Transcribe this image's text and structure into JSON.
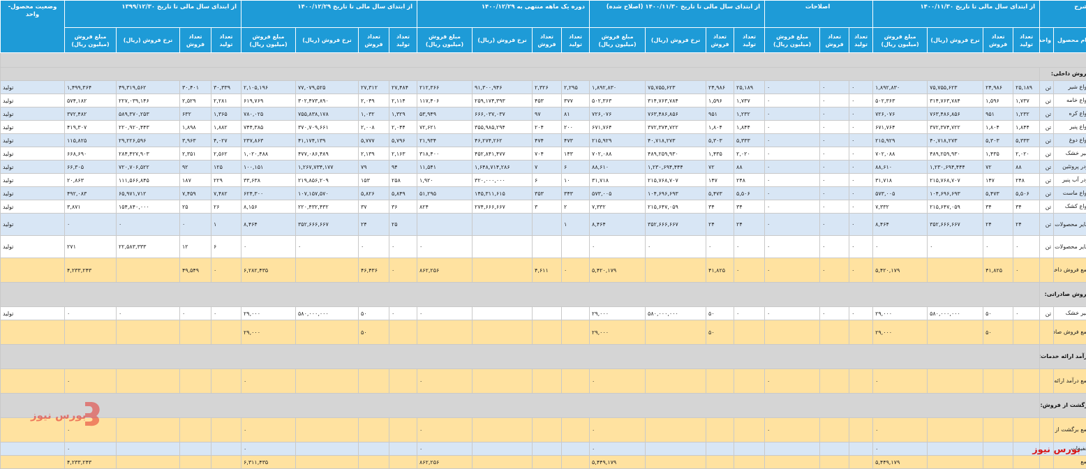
{
  "header": {
    "desc": "شرح",
    "product_name": "نام محصول",
    "unit": "واحد",
    "status": "وضعیت محصول-واحد",
    "groups": [
      "از ابتدای سال مالی تا تاریخ ۱۴۰۰/۱۱/۳۰",
      "اصلاحات",
      "از ابتدای سال مالی تا تاریخ ۱۴۰۰/۱۱/۳۰ (اصلاح شده)",
      "دوره یک ماهه منتهی به ۱۴۰۰/۱۲/۲۹",
      "از ابتدای سال مالی تا تاریخ ۱۴۰۰/۱۲/۲۹",
      "از ابتدای سال مالی تا تاریخ ۱۳۹۹/۱۲/۳۰"
    ],
    "sub4": [
      "تعداد تولید",
      "تعداد فروش",
      "نرخ فروش (ریال)",
      "مبلغ فروش (میلیون ریال)"
    ],
    "sub3": [
      "تعداد تولید",
      "تعداد فروش",
      "مبلغ فروش (میلیون ریال)"
    ]
  },
  "rows": [
    {
      "type": "blank"
    },
    {
      "type": "section",
      "name": "فروش داخلی:"
    },
    {
      "type": "data",
      "bg": "rb",
      "name": "انواع شیر",
      "unit": "تن",
      "status": "تولید",
      "values": [
        "۲۵,۱۸۹",
        "۲۴,۹۸۶",
        "۷۵,۷۵۵,۶۲۳",
        "۱,۸۹۲,۸۳۰",
        "۰",
        "۰",
        "۰",
        "۲۵,۱۸۹",
        "۲۴,۹۸۶",
        "۷۵,۷۵۵,۶۲۳",
        "۱,۸۹۲,۸۳۰",
        "۲,۲۹۵",
        "۲,۳۲۶",
        "۹۱,۳۰۰,۹۴۶",
        "۲۱۲,۳۶۶",
        "۲۷,۴۸۴",
        "۲۷,۳۱۲",
        "۷۷,۰۷۹,۵۲۵",
        "۲,۱۰۵,۱۹۶",
        "۳۰,۳۳۹",
        "۳۰,۴۰۱",
        "۴۹,۳۱۹,۵۶۲",
        "۱,۴۹۹,۳۶۴"
      ]
    },
    {
      "type": "data",
      "bg": "rw",
      "name": "انواع خامه",
      "unit": "تن",
      "status": "تولید",
      "values": [
        "۱,۷۳۷",
        "۱,۵۹۶",
        "۳۱۴,۷۶۳,۷۸۴",
        "۵۰۲,۳۶۳",
        "۰",
        "۰",
        "۰",
        "۱,۷۳۷",
        "۱,۵۹۶",
        "۳۱۴,۷۶۳,۷۸۴",
        "۵۰۲,۳۶۳",
        "۳۷۷",
        "۴۵۳",
        "۲۵۹,۱۷۴,۳۹۳",
        "۱۱۷,۴۰۶",
        "۲,۱۱۴",
        "۲,۰۴۹",
        "۳۰۲,۴۷۳,۸۹۰",
        "۶۱۹,۷۶۹",
        "۲,۲۸۱",
        "۲,۵۲۹",
        "۲۲۷,۰۳۹,۱۴۶",
        "۵۷۴,۱۸۲"
      ]
    },
    {
      "type": "data",
      "bg": "rb",
      "name": "انواع کره",
      "unit": "تن",
      "status": "تولید",
      "values": [
        "۱,۲۳۲",
        "۹۵۱",
        "۷۶۳,۴۸۶,۸۵۶",
        "۷۲۶,۰۷۶",
        "۰",
        "۰",
        "۰",
        "۱,۲۳۲",
        "۹۵۱",
        "۷۶۳,۴۸۶,۸۵۶",
        "۷۲۶,۰۷۶",
        "۸۱",
        "۹۷",
        "۶۶۶,۰۳۷,۰۳۷",
        "۵۳,۹۴۹",
        "۱,۳۲۹",
        "۱,۰۳۲",
        "۷۵۵,۸۳۸,۱۷۸",
        "۷۸۰,۰۲۵",
        "۱,۳۶۵",
        "۶۳۲",
        "۵۸۹,۳۷۰,۲۵۳",
        "۳۷۲,۴۸۲"
      ]
    },
    {
      "type": "data",
      "bg": "rw",
      "name": "انواع پنیر",
      "unit": "تن",
      "status": "تولید",
      "values": [
        "۱,۸۴۴",
        "۱,۸۰۴",
        "۳۷۲,۳۷۴,۷۲۲",
        "۶۷۱,۷۶۴",
        "۰",
        "۰",
        "۰",
        "۱,۸۴۴",
        "۱,۸۰۴",
        "۳۷۲,۳۷۴,۷۲۲",
        "۶۷۱,۷۶۴",
        "۲۰۰",
        "۲۰۴",
        "۳۵۵,۹۸۵,۲۹۴",
        "۷۲,۶۲۱",
        "۲,۰۴۴",
        "۲,۰۰۸",
        "۳۷۰,۷۰۹,۶۶۱",
        "۷۴۴,۳۸۵",
        "۱,۸۸۲",
        "۱,۸۹۸",
        "۲۲۰,۹۲۰,۴۴۳",
        "۴۱۹,۳۰۷"
      ]
    },
    {
      "type": "data",
      "bg": "rb",
      "name": "انواع دوغ",
      "unit": "تن",
      "status": "تولید",
      "values": [
        "۵,۳۳۳",
        "۵,۳۰۳",
        "۴۰,۷۱۸,۲۷۳",
        "۲۱۵,۹۲۹",
        "۰",
        "۰",
        "۰",
        "۵,۳۳۳",
        "۵,۳۰۳",
        "۴۰,۷۱۸,۲۷۳",
        "۲۱۵,۹۲۹",
        "۴۷۳",
        "۴۷۴",
        "۴۶,۲۷۴,۲۶۲",
        "۲۱,۹۳۴",
        "۵,۷۹۶",
        "۵,۷۷۷",
        "۴۱,۱۷۴,۱۳۹",
        "۲۳۷,۸۶۳",
        "۴,۰۲۷",
        "۳,۹۶۳",
        "۲۹,۲۲۶,۵۹۶",
        "۱۱۵,۸۲۵"
      ]
    },
    {
      "type": "data",
      "bg": "rw",
      "name": "شیر خشک",
      "unit": "تن",
      "status": "تولید",
      "values": [
        "۲,۰۲۰",
        "۱,۴۳۵",
        "۴۸۹,۲۵۹,۹۳۰",
        "۷۰۲,۰۸۸",
        "۰",
        "۰",
        "۰",
        "۲,۰۲۰",
        "۱,۴۳۵",
        "۴۸۹,۲۵۹,۹۳۰",
        "۷۰۲,۰۸۸",
        "۱۴۳",
        "۷۰۴",
        "۴۵۲,۸۴۱,۴۷۷",
        "۳۱۸,۴۰۰",
        "۲,۱۶۳",
        "۲,۱۳۹",
        "۴۷۷,۰۸۶,۴۸۹",
        "۱,۰۲۰,۴۸۸",
        "۲,۵۶۲",
        "۲,۳۵۱",
        "۲۸۴,۴۲۷,۹۰۳",
        "۶۶۸,۶۹۰"
      ]
    },
    {
      "type": "data",
      "bg": "rb",
      "name": "پودر پروتئین",
      "unit": "تن",
      "status": "تولید",
      "values": [
        "۸۸",
        "۷۲",
        "۱,۲۳۰,۶۹۴,۴۴۴",
        "۸۸,۶۱۰",
        "۰",
        "۰",
        "۰",
        "۸۸",
        "۷۲",
        "۱,۲۳۰,۶۹۴,۴۴۴",
        "۸۸,۶۱۰",
        "۶",
        "۷",
        "۱,۶۴۸,۷۱۴,۲۸۶",
        "۱۱,۵۴۱",
        "۹۴",
        "۷۹",
        "۱,۲۶۷,۷۳۴,۱۷۷",
        "۱۰۰,۱۵۱",
        "۱۲۵",
        "۹۲",
        "۷۲۰,۷۰۶,۵۲۲",
        "۶۶,۳۰۵"
      ]
    },
    {
      "type": "data",
      "bg": "rw",
      "name": "پودر آب پنیر",
      "unit": "تن",
      "status": "تولید",
      "values": [
        "۲۴۸",
        "۱۴۷",
        "۲۱۵,۷۶۸,۷۰۷",
        "۳۱,۷۱۸",
        "۰",
        "۰",
        "۰",
        "۲۴۸",
        "۱۴۷",
        "۲۱۵,۷۶۸,۷۰۷",
        "۳۱,۷۱۸",
        "۱۰",
        "۶",
        "۳۲۰,۰۰۰,۰۰۰",
        "۱,۹۲۰",
        "۲۵۸",
        "۱۵۳",
        "۲۱۹,۸۵۶,۲۰۹",
        "۳۳,۶۳۸",
        "۲۲۹",
        "۱۸۷",
        "۱۱۱,۵۶۶,۸۴۵",
        "۲۰,۸۶۳"
      ]
    },
    {
      "type": "data",
      "bg": "rb",
      "name": "انواع ماست",
      "unit": "تن",
      "status": "تولید",
      "values": [
        "۵,۵۰۶",
        "۵,۴۷۳",
        "۱۰۴,۶۹۶,۶۹۳",
        "۵۷۳,۰۰۵",
        "۰",
        "۰",
        "۰",
        "۵,۵۰۶",
        "۵,۴۷۳",
        "۱۰۴,۶۹۶,۶۹۳",
        "۵۷۳,۰۰۵",
        "۳۴۳",
        "۳۵۳",
        "۱۴۵,۳۱۱,۶۱۵",
        "۵۱,۲۹۵",
        "۵,۸۴۹",
        "۵,۸۲۶",
        "۱۰۷,۱۵۷,۵۷۰",
        "۶۲۴,۳۰۰",
        "۷,۴۸۲",
        "۷,۴۵۹",
        "۶۵,۹۷۱,۷۱۲",
        "۴۹۲,۰۸۳"
      ]
    },
    {
      "type": "data",
      "bg": "rw",
      "name": "انواع کشک",
      "unit": "تن",
      "status": "تولید",
      "values": [
        "۳۴",
        "۳۴",
        "۲۱۵,۶۴۷,۰۵۹",
        "۷,۳۳۲",
        "۰",
        "۰",
        "۰",
        "۳۴",
        "۳۴",
        "۲۱۵,۶۴۷,۰۵۹",
        "۷,۳۳۲",
        "۲",
        "۳",
        "۲۷۴,۶۶۶,۶۶۷",
        "۸۲۴",
        "۳۶",
        "۳۷",
        "۲۲۰,۴۳۲,۴۳۲",
        "۸,۱۵۶",
        "۲۶",
        "۲۵",
        "۱۵۴,۸۴۰,۰۰۰",
        "۳,۸۷۱"
      ]
    },
    {
      "type": "data",
      "bg": "rb",
      "cls": "h2r",
      "name": "سایر محصولات لبنی",
      "unit": "تن",
      "status": "تولید",
      "values": [
        "۲۴",
        "۲۴",
        "۳۵۲,۶۶۶,۶۶۷",
        "۸,۴۶۴",
        "۰",
        "۰",
        "۰",
        "۲۴",
        "۲۴",
        "۳۵۲,۶۶۶,۶۶۷",
        "۸,۴۶۴",
        "۱",
        "",
        "",
        "",
        "۲۵",
        "۲۴",
        "۳۵۲,۶۶۶,۶۶۷",
        "۸,۴۶۴",
        "۱",
        "۰",
        "۰",
        "۰"
      ]
    },
    {
      "type": "data",
      "bg": "rw",
      "cls": "h2r",
      "name": "سایر محصولات کارمزدی",
      "unit": "تن",
      "status": "تولید",
      "values": [
        "۰",
        "۰",
        "۰",
        "۰",
        "۰",
        "۰",
        "۰",
        "۰",
        "۰",
        "۰",
        "۰",
        "",
        "",
        "",
        "۰",
        "۰",
        "۰",
        "۰",
        "۰",
        "۶",
        "۱۲",
        "۲۲,۵۸۳,۳۳۳",
        "۲۷۱"
      ]
    },
    {
      "type": "data",
      "bg": "tot",
      "cls": "h3r",
      "name": "جمع فروش داخلی",
      "unit": "",
      "status": "",
      "values": [
        "۰",
        "۴۱,۸۲۵",
        "",
        "۵,۴۲۰,۱۷۹",
        "۰",
        "۰",
        "۰",
        "۰",
        "۴۱,۸۲۵",
        "",
        "۵,۴۲۰,۱۷۹",
        "۰",
        "۴,۶۱۱",
        "",
        "۸۶۲,۲۵۶",
        "۰",
        "۴۶,۴۳۶",
        "",
        "۶,۲۸۲,۴۳۵",
        "۰",
        "۴۹,۵۴۹",
        "",
        "۴,۲۳۳,۲۴۳"
      ]
    },
    {
      "type": "section",
      "cls": "h3r",
      "name": "فروش صادراتی:"
    },
    {
      "type": "data",
      "bg": "rw",
      "name": "شیر خشک",
      "unit": "تن",
      "status": "تولید",
      "values": [
        "۰",
        "۵۰",
        "۵۸۰,۰۰۰,۰۰۰",
        "۲۹,۰۰۰",
        "۰",
        "۰",
        "۰",
        "۰",
        "۵۰",
        "۵۸۰,۰۰۰,۰۰۰",
        "۲۹,۰۰۰",
        "",
        "",
        "",
        "۰",
        "۰",
        "۵۰",
        "۵۸۰,۰۰۰,۰۰۰",
        "۲۹,۰۰۰",
        "۰",
        "۰",
        "۰",
        "۰"
      ]
    },
    {
      "type": "data",
      "bg": "tot",
      "cls": "h3r",
      "name": "جمع فروش صادراتی",
      "unit": "",
      "status": "",
      "values": [
        "",
        "۵۰",
        "",
        "۲۹,۰۰۰",
        "",
        "",
        "",
        "",
        "۵۰",
        "",
        "۲۹,۰۰۰",
        "",
        "",
        "",
        "",
        "",
        "۵۰",
        "",
        "۲۹,۰۰۰",
        "",
        "",
        "",
        ""
      ]
    },
    {
      "type": "section",
      "cls": "h3r",
      "name": "درآمد ارائه خدمات:"
    },
    {
      "type": "data",
      "bg": "tot",
      "cls": "h3r",
      "name": "جمع درآمد ارائه خدمات",
      "unit": "",
      "status": "",
      "values": [
        "",
        "",
        "",
        "۰",
        "",
        "",
        "۰",
        "",
        "",
        "",
        "۰",
        "",
        "",
        "",
        "۰",
        "",
        "",
        "",
        "۰",
        "",
        "",
        "",
        "۰"
      ]
    },
    {
      "type": "section",
      "cls": "h3r",
      "name": "برگشت از فروش:"
    },
    {
      "type": "data",
      "bg": "tot",
      "cls": "h3r",
      "name": "جمع برگشت از فروش",
      "unit": "",
      "status": "",
      "values": [
        "",
        "",
        "",
        "۰",
        "",
        "",
        "۰",
        "",
        "",
        "",
        "۰",
        "",
        "",
        "",
        "۰",
        "",
        "",
        "",
        "۰",
        "",
        "",
        "",
        "۰"
      ]
    },
    {
      "type": "data",
      "bg": "rb",
      "name": "تخفیفات",
      "unit": "",
      "status": "",
      "values": [
        "",
        "",
        "",
        "۰",
        "",
        "",
        "",
        "",
        "",
        "",
        "۰",
        "",
        "",
        "",
        "۰",
        "",
        "",
        "",
        "۰",
        "",
        "",
        "",
        "۰"
      ]
    },
    {
      "type": "data",
      "bg": "tot",
      "name": "جمع",
      "unit": "",
      "status": "",
      "values": [
        "",
        "",
        "",
        "۵,۴۴۹,۱۷۹",
        "",
        "",
        "",
        "",
        "",
        "",
        "۵,۴۴۹,۱۷۹",
        "",
        "",
        "",
        "۸۶۲,۲۵۶",
        "",
        "",
        "",
        "۶,۳۱۱,۴۳۵",
        "",
        "",
        "",
        "۴,۲۳۳,۲۴۳"
      ]
    }
  ],
  "logo": {
    "text": "بورس نیوز",
    "color": "#d81818"
  },
  "brand": "بورس نیوز"
}
